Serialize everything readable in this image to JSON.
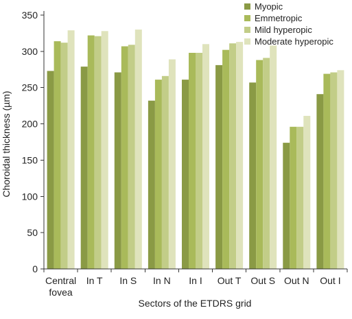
{
  "chart_data": {
    "type": "bar",
    "title": "",
    "xlabel": "Sectors of the ETDRS grid",
    "ylabel": "Choroidal thickness (µm)",
    "ylim": [
      0,
      350
    ],
    "yticks": [
      0,
      50,
      100,
      150,
      200,
      250,
      300,
      350
    ],
    "grid": false,
    "legend_position": "top-right",
    "categories": [
      [
        "Central",
        "fovea"
      ],
      [
        "In T"
      ],
      [
        "In S"
      ],
      [
        "In N"
      ],
      [
        "In I"
      ],
      [
        "Out T"
      ],
      [
        "Out S"
      ],
      [
        "Out N"
      ],
      [
        "Out I"
      ]
    ],
    "series": [
      {
        "name": "Myopic",
        "color": "#8a9a45",
        "values": [
          273,
          279,
          271,
          232,
          261,
          281,
          257,
          174,
          241
        ]
      },
      {
        "name": "Emmetropic",
        "color": "#a9ba5a",
        "values": [
          314,
          322,
          307,
          261,
          298,
          302,
          288,
          196,
          269
        ]
      },
      {
        "name": "Mild hyperopic",
        "color": "#c2cd88",
        "values": [
          312,
          321,
          309,
          266,
          298,
          311,
          291,
          196,
          271
        ]
      },
      {
        "name": "Moderate hyperopic",
        "color": "#dfe3bc",
        "values": [
          329,
          328,
          330,
          289,
          310,
          313,
          308,
          211,
          274
        ]
      }
    ]
  }
}
